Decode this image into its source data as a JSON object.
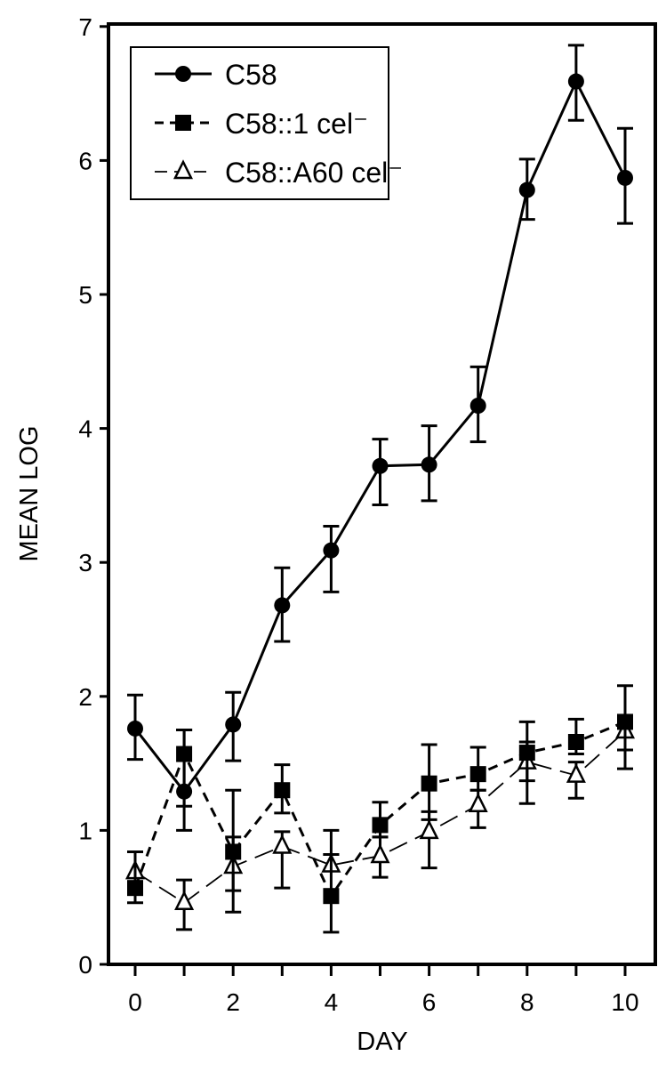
{
  "chart_data": {
    "type": "line",
    "title": "",
    "xlabel": "DAY",
    "ylabel": "MEAN LOG",
    "xlim": [
      -0.55,
      10.6
    ],
    "ylim": [
      0,
      7
    ],
    "xticks": [
      0,
      2,
      4,
      6,
      8,
      10
    ],
    "xticks_minor": [
      1,
      3,
      5,
      7,
      9
    ],
    "yticks": [
      0,
      1,
      2,
      3,
      4,
      5,
      6,
      7
    ],
    "grid": false,
    "legend_position": "top-left",
    "x": [
      0,
      1,
      2,
      3,
      4,
      5,
      6,
      7,
      8,
      9,
      10
    ],
    "series": [
      {
        "name": "C58",
        "marker": "filled-circle",
        "line": "solid",
        "color": "#000000",
        "values": [
          1.76,
          1.29,
          1.79,
          2.68,
          3.09,
          3.72,
          3.73,
          4.17,
          5.78,
          6.59,
          5.87
        ],
        "err_low": [
          1.53,
          1.0,
          1.52,
          2.41,
          2.78,
          3.43,
          3.46,
          3.9,
          5.56,
          6.3,
          5.53
        ],
        "err_high": [
          2.01,
          1.75,
          2.03,
          2.96,
          3.27,
          3.92,
          4.02,
          4.46,
          6.01,
          6.86,
          6.24
        ]
      },
      {
        "name": "C58::1 cel⁻",
        "marker": "filled-square",
        "line": "dashed",
        "color": "#000000",
        "values": [
          0.57,
          1.57,
          0.84,
          1.3,
          0.51,
          1.04,
          1.35,
          1.42,
          1.58,
          1.66,
          1.81
        ],
        "err_low": [
          0.46,
          1.18,
          0.39,
          1.13,
          0.24,
          0.95,
          1.08,
          1.3,
          1.37,
          1.57,
          1.46
        ],
        "err_high": [
          0.84,
          1.75,
          1.3,
          1.49,
          0.82,
          1.21,
          1.64,
          1.62,
          1.81,
          1.83,
          2.08
        ]
      },
      {
        "name": "C58::A60 cel⁻",
        "marker": "open-triangle",
        "line": "long-dash",
        "color": "#000000",
        "values": [
          0.69,
          0.46,
          0.73,
          0.88,
          0.74,
          0.81,
          0.99,
          1.19,
          1.51,
          1.41,
          1.74
        ],
        "err_low": [
          0.57,
          0.26,
          0.55,
          0.57,
          0.82,
          0.65,
          0.72,
          1.02,
          1.2,
          1.24,
          1.6
        ],
        "err_high": [
          0.84,
          0.63,
          0.95,
          0.99,
          1.0,
          0.95,
          1.14,
          1.3,
          1.66,
          1.51,
          1.81
        ]
      }
    ]
  }
}
